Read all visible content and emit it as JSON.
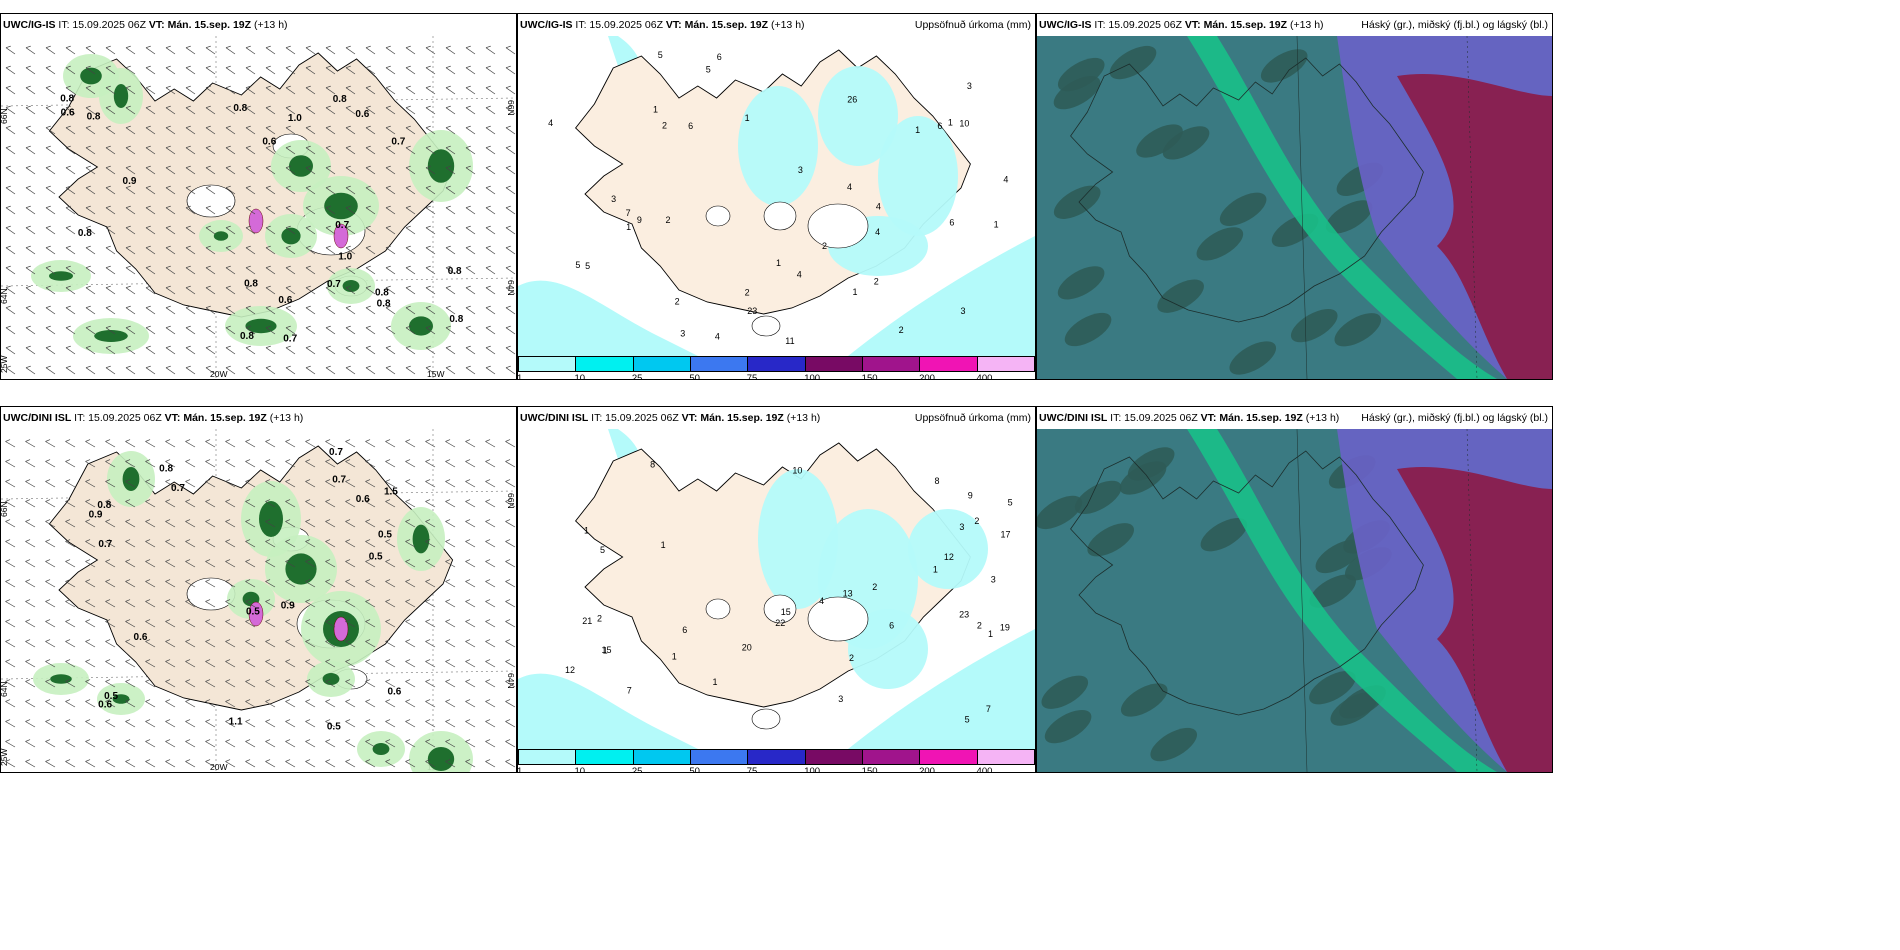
{
  "panels": [
    {
      "model": "UWC/IG-IS",
      "it": "IT: 15.09.2025 06Z",
      "vt": "VT: Mán. 15.sep. 19Z",
      "lead": "(+13 h)",
      "right": ""
    },
    {
      "model": "UWC/IG-IS",
      "it": "IT: 15.09.2025 06Z",
      "vt": "VT: Mán. 15.sep. 19Z",
      "lead": "(+13 h)",
      "right": "Uppsöfnuð úrkoma (mm)"
    },
    {
      "model": "UWC/IG-IS",
      "it": "IT: 15.09.2025 06Z",
      "vt": "VT: Mán. 15.sep. 19Z",
      "lead": "(+13 h)",
      "right": "Háský (gr.), miðský (fj.bl.) og lágský (bl.)"
    },
    {
      "model": "UWC/DINI ISL",
      "it": "IT: 15.09.2025 06Z",
      "vt": "VT: Mán. 15.sep. 19Z",
      "lead": "(+13 h)",
      "right": ""
    },
    {
      "model": "UWC/DINI ISL",
      "it": "IT: 15.09.2025 06Z",
      "vt": "VT: Mán. 15.sep. 19Z",
      "lead": "(+13 h)",
      "right": "Uppsöfnuð úrkoma (mm)"
    },
    {
      "model": "UWC/DINI ISL",
      "it": "IT: 15.09.2025 06Z",
      "vt": "VT: Mán. 15.sep. 19Z",
      "lead": "(+13 h)",
      "right": "Háský (gr.), miðský (fj.bl.) og lágský (bl.)"
    }
  ],
  "axis_labels": {
    "lon_20": "20W",
    "lon_15": "15W",
    "lat_66": "66N",
    "lat_64": "64N",
    "lon_25": "25W"
  },
  "colorbar": {
    "ticks": [
      "1",
      "10",
      "25",
      "50",
      "75",
      "100",
      "150",
      "200",
      "400"
    ],
    "colors": [
      "#b4fafa",
      "#00f0f0",
      "#00c8f0",
      "#3c78f0",
      "#2828c8",
      "#780a64",
      "#a0148c",
      "#f014b4",
      "#f5b4f5"
    ]
  },
  "wind_labels_igis": [
    "0.6",
    "0.8",
    "0.8",
    "0.7",
    "0.8",
    "0.8",
    "0.7",
    "0.8",
    "0.9",
    "0.8",
    "0.8",
    "1.0",
    "0.7",
    "0.8",
    "0.8",
    "0.6",
    "0.8",
    "0.7",
    "0.6",
    "1.0",
    "0.6",
    "0.8"
  ],
  "wind_labels_dini": [
    "0.8",
    "0.5",
    "0.5",
    "0.9",
    "1.5",
    "0.6",
    "0.6",
    "0.5",
    "0.7",
    "0.6",
    "0.5",
    "0.7",
    "0.6",
    "0.7",
    "1.1",
    "0.9",
    "0.5",
    "0.7",
    "0.8"
  ],
  "precip_labels_igis": [
    "1",
    "1",
    "1",
    "1",
    "1",
    "3",
    "3",
    "3",
    "4",
    "4",
    "4",
    "5",
    "5",
    "6",
    "6",
    "7",
    "6",
    "2",
    "2",
    "2",
    "2",
    "26",
    "23",
    "4",
    "4",
    "4",
    "5",
    "2",
    "2",
    "1",
    "3",
    "3",
    "2",
    "1",
    "1",
    "10",
    "9",
    "11",
    "5",
    "4",
    "6"
  ],
  "precip_labels_dini": [
    "1",
    "1",
    "1",
    "1",
    "2",
    "3",
    "5",
    "6",
    "7",
    "8",
    "10",
    "12",
    "13",
    "17",
    "23",
    "22",
    "19",
    "21",
    "15",
    "12",
    "9",
    "8",
    "7",
    "6",
    "5",
    "4",
    "3",
    "2",
    "2",
    "2",
    "1",
    "1",
    "15",
    "20",
    "5",
    "3",
    "2",
    "1"
  ]
}
